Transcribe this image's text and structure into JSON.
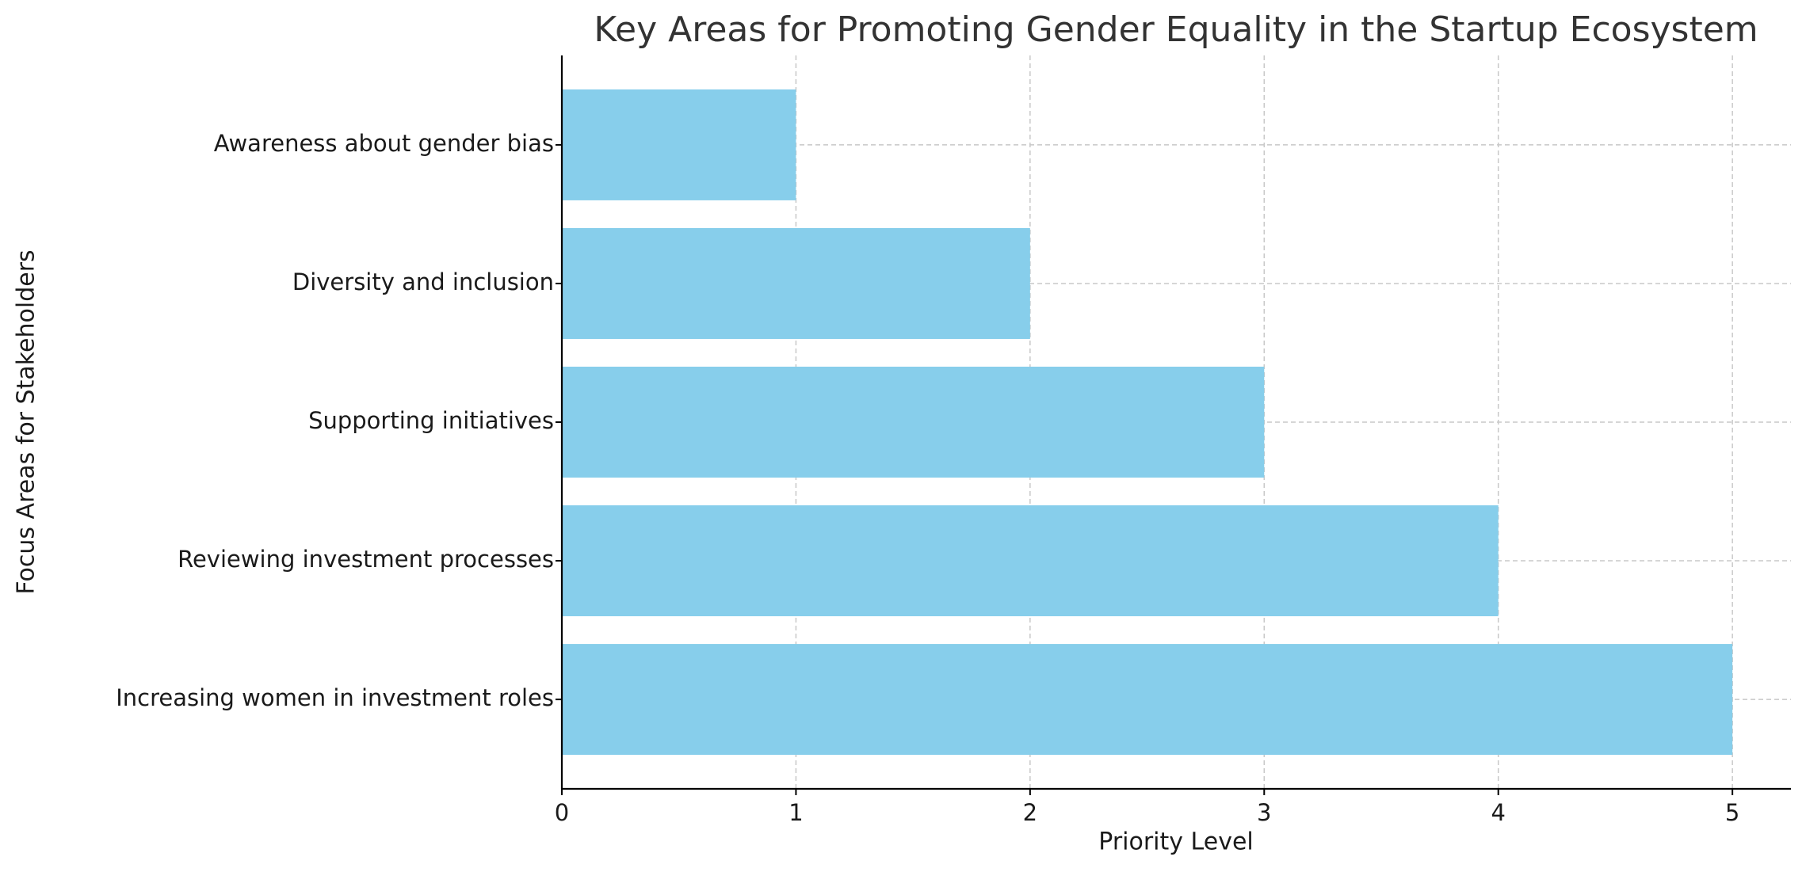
{
  "chart_data": {
    "type": "barh",
    "title": "Key Areas for Promoting Gender Equality in the Startup Ecosystem",
    "x_label": "Priority Level",
    "y_label": "Focus Areas for Stakeholders",
    "categories": [
      "Increasing women in investment roles",
      "Reviewing investment processes",
      "Supporting initiatives",
      "Diversity and inclusion",
      "Awareness about gender bias"
    ],
    "values": [
      5,
      4,
      3,
      2,
      1
    ],
    "color": "#87ceeb",
    "xlim": [
      0,
      5.25
    ],
    "xticks": [
      0,
      1,
      2,
      3,
      4,
      5
    ],
    "grid": true
  }
}
